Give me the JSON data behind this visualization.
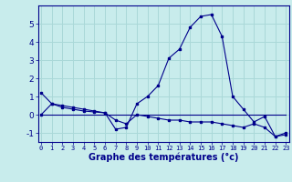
{
  "xlabel": "Graphe des températures (°c)",
  "background_color": "#c8ecec",
  "plot_bg_color": "#c8ecec",
  "grid_color": "#aad8d8",
  "line_color": "#00008b",
  "x_hours": [
    0,
    1,
    2,
    3,
    4,
    5,
    6,
    7,
    8,
    9,
    10,
    11,
    12,
    13,
    14,
    15,
    16,
    17,
    18,
    19,
    20,
    21,
    22,
    23
  ],
  "line1": [
    1.2,
    0.6,
    0.5,
    0.4,
    0.3,
    0.2,
    0.1,
    -0.8,
    -0.7,
    0.6,
    1.0,
    1.6,
    3.1,
    3.6,
    4.8,
    5.4,
    5.5,
    4.3,
    1.0,
    0.3,
    -0.4,
    -0.1,
    -1.2,
    -1.1
  ],
  "line2": [
    0.0,
    0.0,
    0.0,
    0.0,
    0.0,
    0.0,
    0.0,
    0.0,
    0.0,
    0.0,
    0.0,
    0.0,
    0.0,
    0.0,
    0.0,
    0.0,
    0.0,
    0.0,
    0.0,
    0.0,
    0.0,
    0.0,
    0.0,
    0.0
  ],
  "line3": [
    0.0,
    0.6,
    0.4,
    0.3,
    0.2,
    0.15,
    0.1,
    -0.3,
    -0.5,
    0.0,
    -0.1,
    -0.2,
    -0.3,
    -0.3,
    -0.4,
    -0.4,
    -0.4,
    -0.5,
    -0.6,
    -0.7,
    -0.5,
    -0.7,
    -1.2,
    -1.0
  ],
  "ylim": [
    -1.5,
    6.0
  ],
  "yticks": [
    -1,
    0,
    1,
    2,
    3,
    4,
    5
  ],
  "xlim": [
    -0.3,
    23.3
  ],
  "xticks": [
    0,
    1,
    2,
    3,
    4,
    5,
    6,
    7,
    8,
    9,
    10,
    11,
    12,
    13,
    14,
    15,
    16,
    17,
    18,
    19,
    20,
    21,
    22,
    23
  ],
  "xtick_labels": [
    "0",
    "1",
    "2",
    "3",
    "4",
    "5",
    "6",
    "7",
    "8",
    "9",
    "10",
    "11",
    "12",
    "13",
    "14",
    "15",
    "16",
    "17",
    "18",
    "19",
    "20",
    "21",
    "22",
    "23"
  ]
}
